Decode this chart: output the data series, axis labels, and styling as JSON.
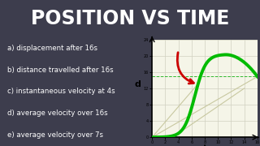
{
  "title": "POSITION VS TIME",
  "title_bg": "#3d3d4d",
  "title_color": "#ffffff",
  "left_bg": "#d9534f",
  "right_bg": "#f5f5e8",
  "questions": [
    "a) displacement after 16s",
    "b) distance travelled after 16s",
    "c) instantaneous velocity at 4s",
    "d) average velocity over 16s",
    "e) average velocity over 7s"
  ],
  "question_color": "#ffffff",
  "ylabel": "d",
  "xlabel": "t",
  "ylim": [
    0,
    24
  ],
  "xlim": [
    0,
    16
  ],
  "ytick_labels": [
    "0",
    "4",
    "8",
    "12",
    "16",
    "20",
    "24"
  ],
  "ytick_vals": [
    0,
    4,
    8,
    12,
    16,
    20,
    24
  ],
  "xtick_labels": [
    "0",
    "2",
    "4",
    "6",
    "8",
    "10",
    "12",
    "14",
    "16"
  ],
  "xtick_vals": [
    0,
    2,
    4,
    6,
    8,
    10,
    12,
    14,
    16
  ],
  "curve_color": "#00bb00",
  "curve_lw": 2.8,
  "tangent_color": "#c8c8a0",
  "secant_color": "#c8c8a0",
  "grid_color": "#d0d0c0",
  "arrow_color": "#cc0000",
  "title_fontsize": 17,
  "question_fontsize": 6.2
}
